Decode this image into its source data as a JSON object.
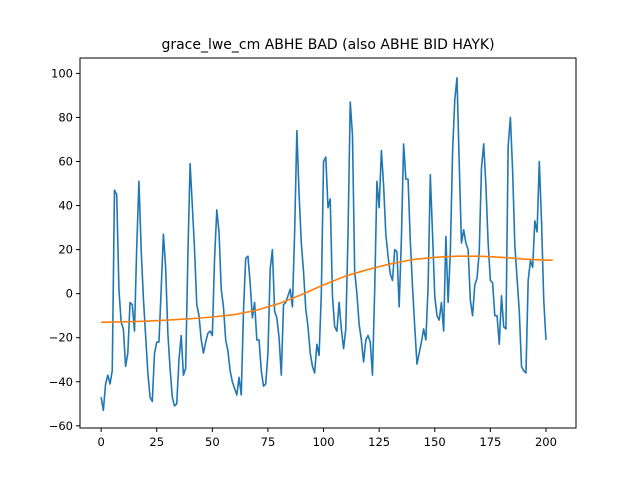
{
  "chart_data": {
    "type": "line",
    "title": "grace_lwe_cm ABHE BAD (also ABHE BID HAYK)",
    "xlabel": "",
    "ylabel": "",
    "xlim": [
      -9.5,
      213.5
    ],
    "ylim": [
      -61,
      107
    ],
    "xticks": [
      0,
      25,
      50,
      75,
      100,
      125,
      150,
      175,
      200
    ],
    "yticks": [
      -60,
      -40,
      -20,
      0,
      20,
      40,
      60,
      80,
      100
    ],
    "grid": false,
    "series": [
      {
        "color": "#1f77b4",
        "points": [
          [
            0,
            -47
          ],
          [
            1,
            -53
          ],
          [
            2,
            -41
          ],
          [
            3,
            -37
          ],
          [
            4,
            -41
          ],
          [
            5,
            -35
          ],
          [
            6,
            47
          ],
          [
            7,
            45
          ],
          [
            8,
            2
          ],
          [
            9,
            -13
          ],
          [
            10,
            -16
          ],
          [
            11,
            -33
          ],
          [
            12,
            -27
          ],
          [
            13,
            -4
          ],
          [
            14,
            -5
          ],
          [
            15,
            -17
          ],
          [
            16,
            21
          ],
          [
            17,
            51
          ],
          [
            18,
            20
          ],
          [
            19,
            -2
          ],
          [
            20,
            -19
          ],
          [
            21,
            -36
          ],
          [
            22,
            -47
          ],
          [
            23,
            -49
          ],
          [
            24,
            -27
          ],
          [
            25,
            -22
          ],
          [
            26,
            -22
          ],
          [
            27,
            2
          ],
          [
            28,
            27
          ],
          [
            29,
            12
          ],
          [
            30,
            -18
          ],
          [
            31,
            -34
          ],
          [
            32,
            -47
          ],
          [
            33,
            -51
          ],
          [
            34,
            -50
          ],
          [
            35,
            -30
          ],
          [
            36,
            -19
          ],
          [
            37,
            -37
          ],
          [
            38,
            -34
          ],
          [
            39,
            17
          ],
          [
            40,
            59
          ],
          [
            41,
            40
          ],
          [
            42,
            20
          ],
          [
            43,
            -5
          ],
          [
            44,
            -10
          ],
          [
            45,
            -21
          ],
          [
            46,
            -27
          ],
          [
            47,
            -22
          ],
          [
            48,
            -18
          ],
          [
            49,
            -17
          ],
          [
            50,
            -19
          ],
          [
            51,
            16
          ],
          [
            52,
            38
          ],
          [
            53,
            28
          ],
          [
            54,
            2
          ],
          [
            55,
            -6
          ],
          [
            56,
            -21
          ],
          [
            57,
            -26
          ],
          [
            58,
            -35
          ],
          [
            59,
            -40
          ],
          [
            60,
            -43
          ],
          [
            61,
            -46
          ],
          [
            62,
            -38
          ],
          [
            63,
            -46
          ],
          [
            64,
            -8
          ],
          [
            65,
            16
          ],
          [
            66,
            17
          ],
          [
            67,
            5
          ],
          [
            68,
            -11
          ],
          [
            69,
            -4
          ],
          [
            70,
            -21
          ],
          [
            71,
            -21
          ],
          [
            72,
            -35
          ],
          [
            73,
            -42
          ],
          [
            74,
            -41
          ],
          [
            75,
            -27
          ],
          [
            76,
            11
          ],
          [
            77,
            20
          ],
          [
            78,
            -8
          ],
          [
            79,
            -11
          ],
          [
            80,
            -20
          ],
          [
            81,
            -37
          ],
          [
            82,
            -5
          ],
          [
            83,
            -4
          ],
          [
            84,
            -1
          ],
          [
            85,
            2
          ],
          [
            86,
            -6
          ],
          [
            87,
            28
          ],
          [
            88,
            74
          ],
          [
            89,
            45
          ],
          [
            90,
            23
          ],
          [
            91,
            10
          ],
          [
            92,
            -7
          ],
          [
            93,
            -15
          ],
          [
            94,
            -27
          ],
          [
            95,
            -33
          ],
          [
            96,
            -36
          ],
          [
            97,
            -23
          ],
          [
            98,
            -28
          ],
          [
            99,
            0
          ],
          [
            100,
            60
          ],
          [
            101,
            62
          ],
          [
            102,
            39
          ],
          [
            103,
            43
          ],
          [
            104,
            -1
          ],
          [
            105,
            -15
          ],
          [
            106,
            -17
          ],
          [
            107,
            -4
          ],
          [
            108,
            -16
          ],
          [
            109,
            -25
          ],
          [
            110,
            -16
          ],
          [
            111,
            27
          ],
          [
            112,
            87
          ],
          [
            113,
            72
          ],
          [
            114,
            10
          ],
          [
            115,
            0
          ],
          [
            116,
            -14
          ],
          [
            117,
            -21
          ],
          [
            118,
            -31
          ],
          [
            119,
            -21
          ],
          [
            120,
            -19
          ],
          [
            121,
            -22
          ],
          [
            122,
            -37
          ],
          [
            123,
            2
          ],
          [
            124,
            51
          ],
          [
            125,
            39
          ],
          [
            126,
            65
          ],
          [
            127,
            49
          ],
          [
            128,
            27
          ],
          [
            129,
            17
          ],
          [
            130,
            9
          ],
          [
            131,
            6
          ],
          [
            132,
            20
          ],
          [
            133,
            19
          ],
          [
            134,
            -6
          ],
          [
            135,
            25
          ],
          [
            136,
            68
          ],
          [
            137,
            52
          ],
          [
            138,
            52
          ],
          [
            139,
            24
          ],
          [
            140,
            3
          ],
          [
            141,
            -15
          ],
          [
            142,
            -32
          ],
          [
            143,
            -27
          ],
          [
            144,
            -22
          ],
          [
            145,
            -16
          ],
          [
            146,
            -21
          ],
          [
            147,
            3
          ],
          [
            148,
            54
          ],
          [
            149,
            27
          ],
          [
            150,
            -1
          ],
          [
            151,
            -10
          ],
          [
            152,
            -12
          ],
          [
            153,
            -4
          ],
          [
            154,
            -17
          ],
          [
            155,
            26
          ],
          [
            156,
            -4
          ],
          [
            157,
            19
          ],
          [
            158,
            64
          ],
          [
            159,
            88
          ],
          [
            160,
            98
          ],
          [
            161,
            59
          ],
          [
            162,
            23
          ],
          [
            163,
            29
          ],
          [
            164,
            23
          ],
          [
            165,
            20
          ],
          [
            166,
            -3
          ],
          [
            167,
            -10
          ],
          [
            168,
            4
          ],
          [
            169,
            7
          ],
          [
            170,
            19
          ],
          [
            171,
            57
          ],
          [
            172,
            68
          ],
          [
            173,
            49
          ],
          [
            174,
            23
          ],
          [
            175,
            6
          ],
          [
            176,
            5
          ],
          [
            177,
            -10
          ],
          [
            178,
            -10
          ],
          [
            179,
            -23
          ],
          [
            180,
            -1
          ],
          [
            181,
            -15
          ],
          [
            182,
            -16
          ],
          [
            183,
            67
          ],
          [
            184,
            80
          ],
          [
            185,
            56
          ],
          [
            186,
            22
          ],
          [
            187,
            7
          ],
          [
            188,
            -8
          ],
          [
            189,
            -33
          ],
          [
            190,
            -35
          ],
          [
            191,
            -36
          ],
          [
            192,
            6
          ],
          [
            193,
            15
          ],
          [
            194,
            12
          ],
          [
            195,
            33
          ],
          [
            196,
            28
          ],
          [
            197,
            60
          ],
          [
            198,
            33
          ],
          [
            199,
            -3
          ],
          [
            200,
            -21
          ]
        ]
      },
      {
        "color": "#ff7f0e",
        "points": [
          [
            0,
            -13
          ],
          [
            10,
            -12.8
          ],
          [
            20,
            -12.5
          ],
          [
            30,
            -12
          ],
          [
            40,
            -11.4
          ],
          [
            50,
            -10.6
          ],
          [
            60,
            -9.5
          ],
          [
            70,
            -7.5
          ],
          [
            80,
            -4.5
          ],
          [
            90,
            -0.5
          ],
          [
            100,
            4
          ],
          [
            110,
            8
          ],
          [
            120,
            11
          ],
          [
            130,
            13.5
          ],
          [
            140,
            15.5
          ],
          [
            150,
            16.5
          ],
          [
            160,
            17
          ],
          [
            170,
            17
          ],
          [
            180,
            16.5
          ],
          [
            190,
            15.7
          ],
          [
            200,
            15.2
          ],
          [
            203,
            15.2
          ]
        ]
      }
    ]
  }
}
